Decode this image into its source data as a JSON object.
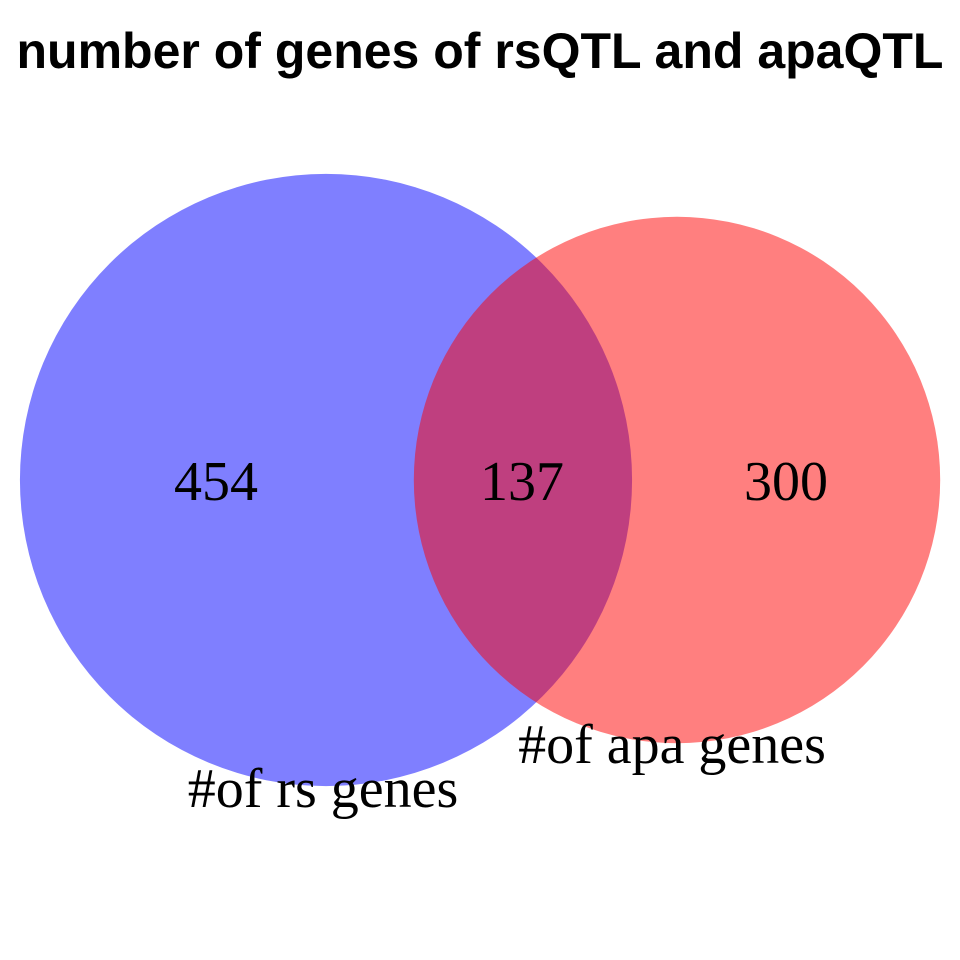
{
  "chart_data": {
    "type": "venn",
    "title": "number of genes of rsQTL and apaQTL",
    "sets": [
      {
        "name": "#of rs genes",
        "color": "#0000ff",
        "value": 454
      },
      {
        "name": "#of apa genes",
        "color": "#ff0000",
        "value": 300
      }
    ],
    "intersection": 137
  }
}
